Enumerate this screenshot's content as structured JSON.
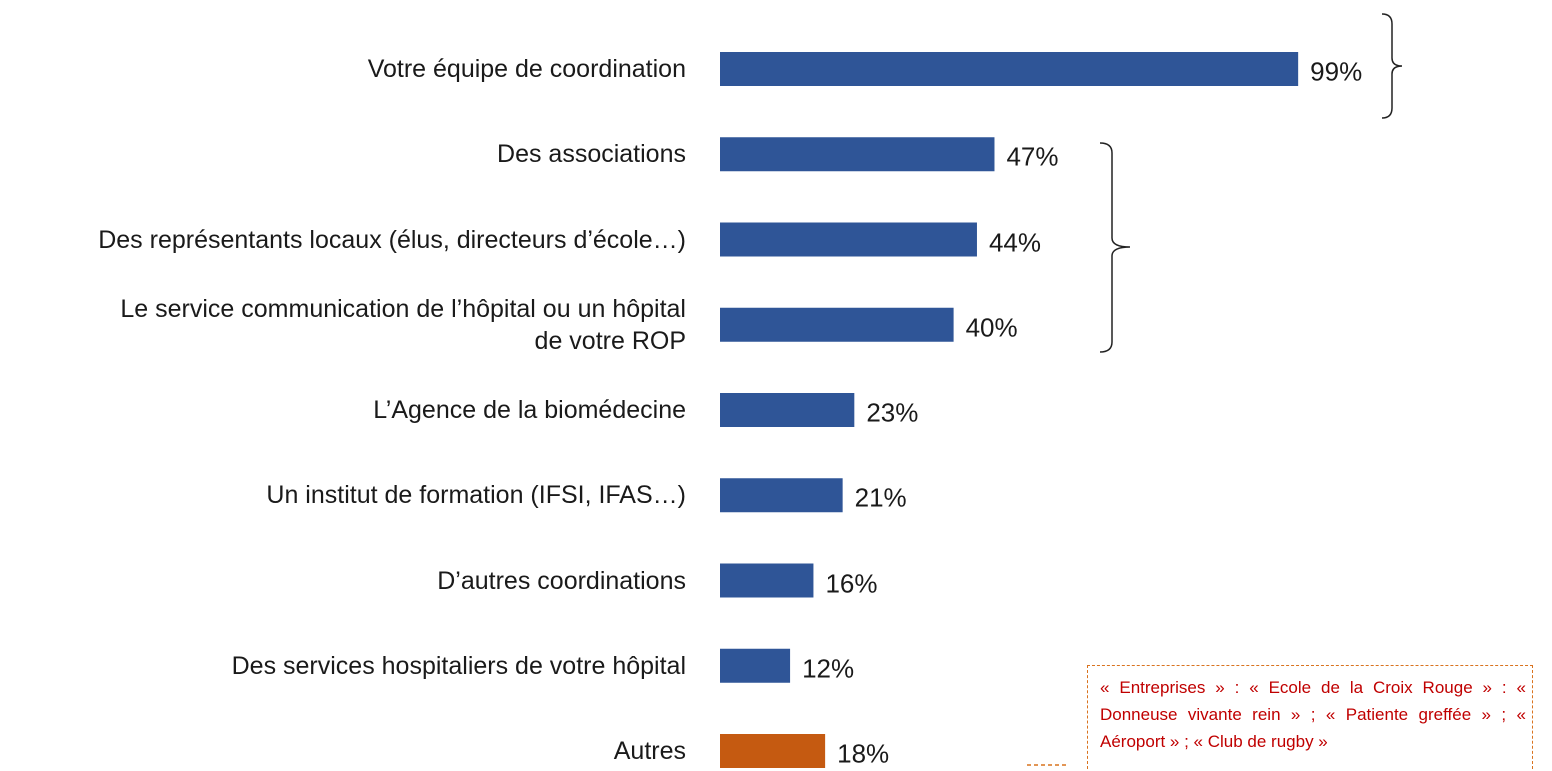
{
  "chart_data": {
    "type": "bar",
    "orientation": "horizontal",
    "categories": [
      "Votre équipe de coordination",
      "Des associations",
      "Des représentants locaux (élus, directeurs d’école…)",
      "Le service communication de l’hôpital ou un hôpital\nde votre ROP",
      "L’Agence de la biomédecine",
      "Un institut de formation (IFSI, IFAS…)",
      "D’autres coordinations",
      "Des services hospitaliers de votre hôpital",
      "Autres"
    ],
    "values": [
      99,
      47,
      44,
      40,
      23,
      21,
      16,
      12,
      18
    ],
    "value_labels": [
      "99%",
      "47%",
      "44%",
      "40%",
      "23%",
      "21%",
      "16%",
      "12%",
      "18%"
    ],
    "colors": [
      "#2f5597",
      "#2f5597",
      "#2f5597",
      "#2f5597",
      "#2f5597",
      "#2f5597",
      "#2f5597",
      "#2f5597",
      "#c55a11"
    ],
    "xlim": [
      0,
      100
    ],
    "annotation": "« Entreprises » : « Ecole de la Croix Rouge » : « Donneuse vivante rein » ; « Patiente greffée » ; « Aéroport » ; « Club de rugby »"
  }
}
